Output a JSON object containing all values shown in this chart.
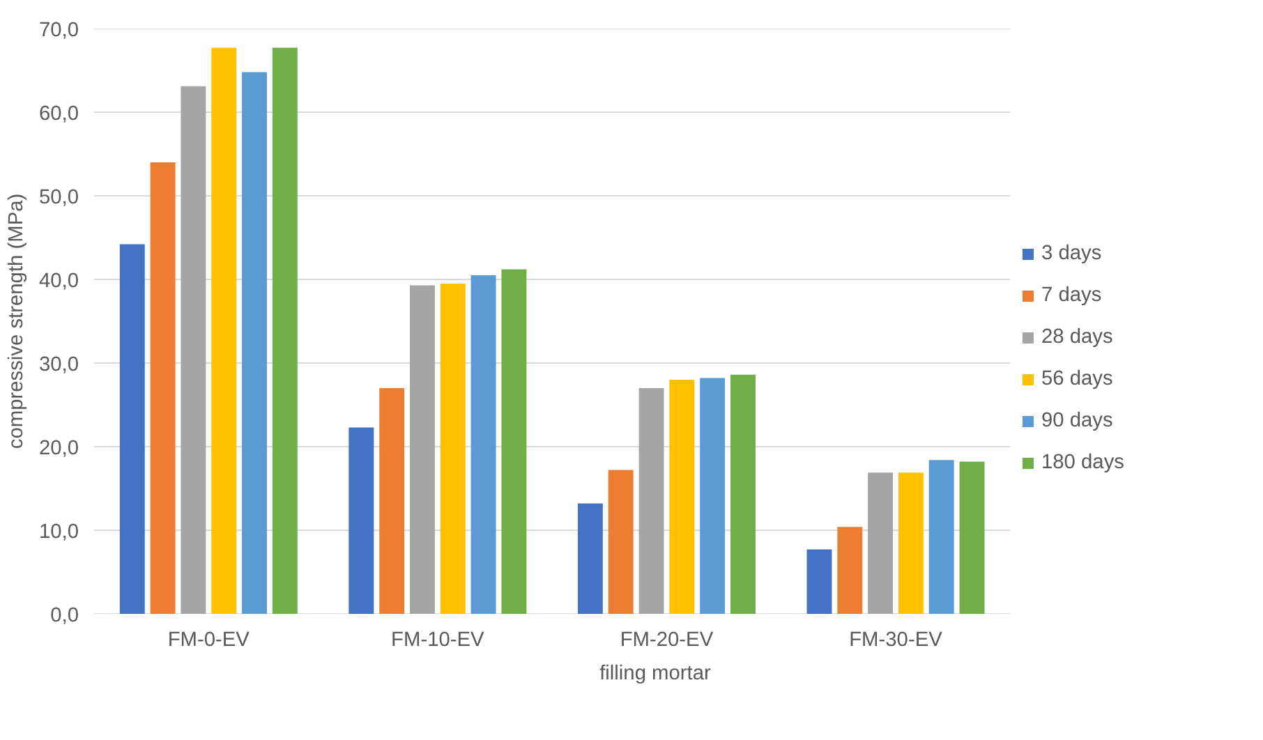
{
  "chart_data": {
    "type": "bar",
    "xlabel": "filling mortar",
    "ylabel": "compressive strength (MPa)",
    "categories": [
      "FM-0-EV",
      "FM-10-EV",
      "FM-20-EV",
      "FM-30-EV"
    ],
    "series": [
      {
        "name": "3 days",
        "color": "#4472c4",
        "values": [
          44.2,
          22.3,
          13.2,
          7.7
        ]
      },
      {
        "name": "7 days",
        "color": "#ed7d31",
        "values": [
          54.0,
          27.0,
          17.2,
          10.4
        ]
      },
      {
        "name": "28 days",
        "color": "#a5a5a5",
        "values": [
          63.1,
          39.3,
          27.0,
          16.9
        ]
      },
      {
        "name": "56 days",
        "color": "#ffc000",
        "values": [
          67.7,
          39.5,
          28.0,
          16.9
        ]
      },
      {
        "name": "90 days",
        "color": "#5b9bd5",
        "values": [
          64.8,
          40.5,
          28.2,
          18.4
        ]
      },
      {
        "name": "180 days",
        "color": "#70ad47",
        "values": [
          67.7,
          41.2,
          28.6,
          18.2
        ]
      }
    ],
    "ylim": [
      0,
      70
    ],
    "yticks": [
      {
        "value": 0,
        "label": "0,0"
      },
      {
        "value": 10,
        "label": "10,0"
      },
      {
        "value": 20,
        "label": "20,0"
      },
      {
        "value": 30,
        "label": "30,0"
      },
      {
        "value": 40,
        "label": "40,0"
      },
      {
        "value": 50,
        "label": "50,0"
      },
      {
        "value": 60,
        "label": "60,0"
      },
      {
        "value": 70,
        "label": "70,0"
      }
    ],
    "grid": "y",
    "legend": "right"
  }
}
